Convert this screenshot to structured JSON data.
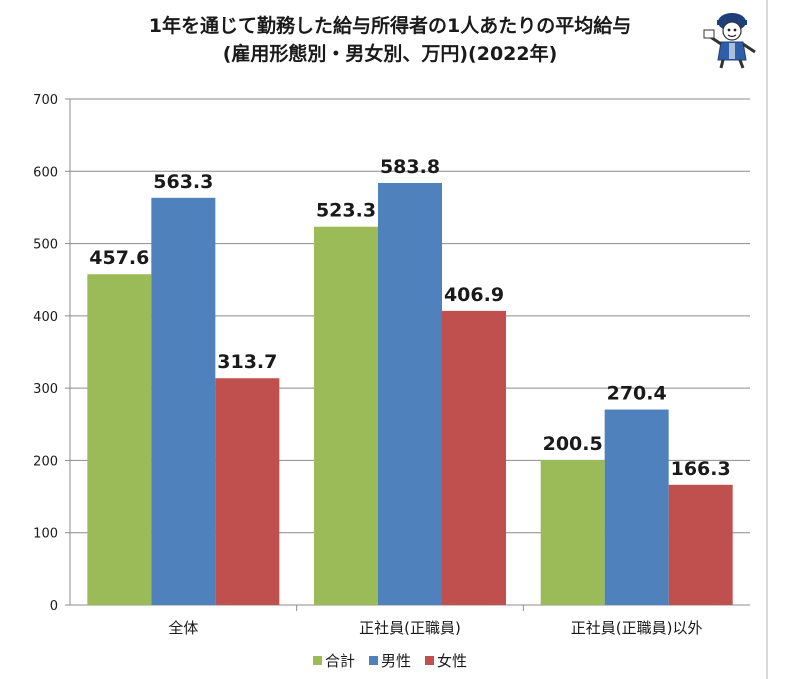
{
  "chart_data": {
    "type": "bar",
    "title": "1年を通じて勤務した給与所得者の1人あたりの平均給与",
    "subtitle": "(雇用形態別・男女別、万円)(2022年)",
    "categories": [
      "全体",
      "正社員(正職員)",
      "正社員(正職員)以外"
    ],
    "series": [
      {
        "name": "合計",
        "color": "#9bbb59",
        "values": [
          457.6,
          523.3,
          200.5
        ]
      },
      {
        "name": "男性",
        "color": "#4f81bd",
        "values": [
          563.3,
          583.8,
          270.4
        ]
      },
      {
        "name": "女性",
        "color": "#c0504d",
        "values": [
          313.7,
          406.9,
          166.3
        ]
      }
    ],
    "yticks": [
      "0",
      "100",
      "200",
      "300",
      "400",
      "500",
      "600",
      "700"
    ],
    "ylim": [
      0,
      700
    ],
    "xlabel": "",
    "ylabel": "",
    "grid": true,
    "legend_position": "bottom"
  },
  "mascot_icon": "mascot-character-icon"
}
